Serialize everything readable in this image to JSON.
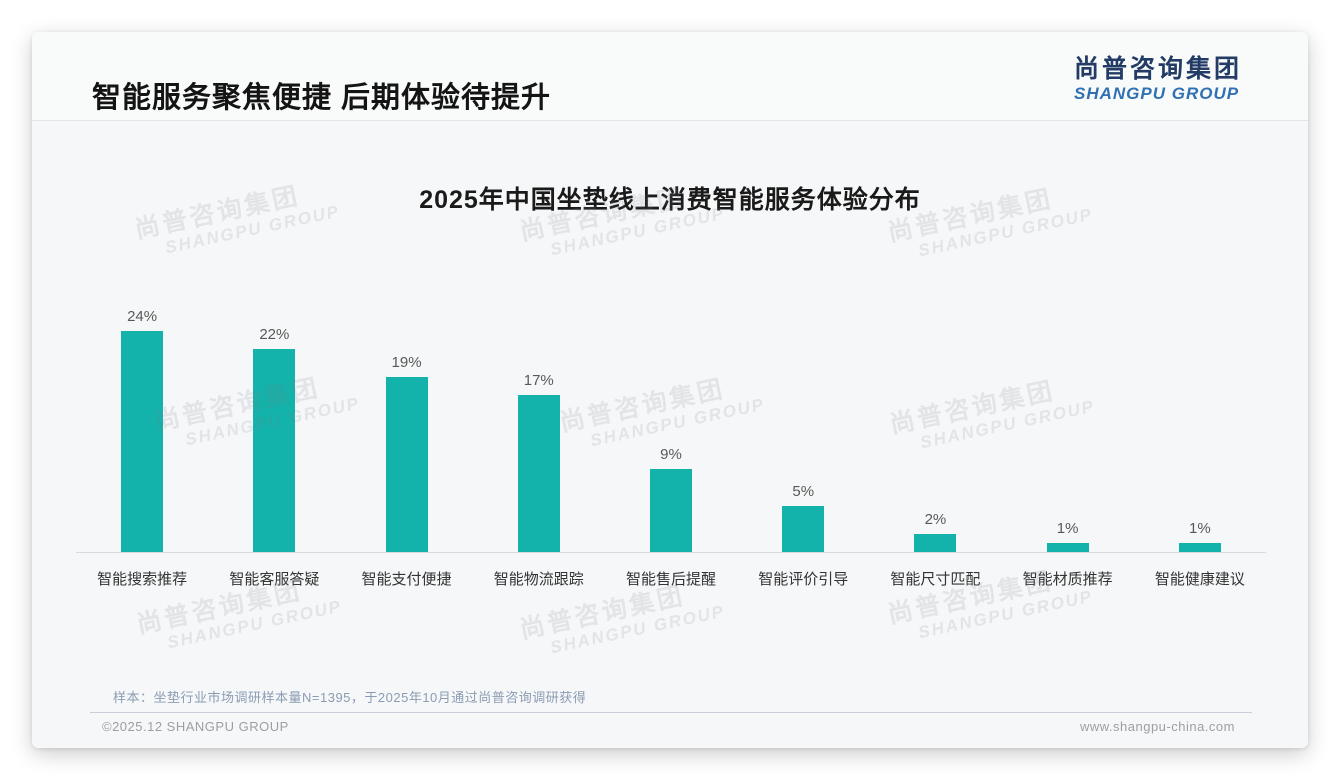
{
  "page": {
    "title": "智能服务聚焦便捷 后期体验待提升",
    "logo": {
      "cn": "尚普咨询集团",
      "en": "SHANGPU GROUP"
    },
    "watermark": {
      "cn": "尚普咨询集团",
      "en": "SHANGPU GROUP"
    },
    "sample_note": "样本：坐垫行业市场调研样本量N=1395，于2025年10月通过尚普咨询调研获得",
    "copyright": "©2025.12 SHANGPU GROUP",
    "website": "www.shangpu-china.com"
  },
  "colors": {
    "bar": "#13b2aa",
    "logo_navy": "#223c66",
    "logo_blue": "#2f71b3",
    "note_gray_blue": "#8b9cb3"
  },
  "chart_data": {
    "type": "bar",
    "title": "2025年中国坐垫线上消费智能服务体验分布",
    "categories": [
      "智能搜索推荐",
      "智能客服答疑",
      "智能支付便捷",
      "智能物流跟踪",
      "智能售后提醒",
      "智能评价引导",
      "智能尺寸匹配",
      "智能材质推荐",
      "智能健康建议"
    ],
    "values": [
      24,
      22,
      19,
      17,
      9,
      5,
      2,
      1,
      1
    ],
    "value_labels": [
      "24%",
      "22%",
      "19%",
      "17%",
      "9%",
      "5%",
      "2%",
      "1%",
      "1%"
    ],
    "unit": "%",
    "ylim": [
      0,
      24
    ],
    "xlabel": "",
    "ylabel": "",
    "grid": false,
    "legend": false,
    "bar_color": "#13b2aa"
  }
}
